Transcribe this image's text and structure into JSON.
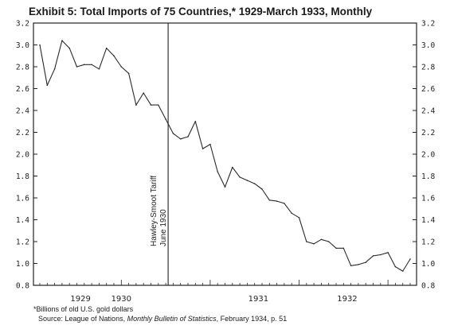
{
  "chart_data": {
    "type": "line",
    "title": "Exhibit 5: Total Imports of 75 Countries,* 1929-March 1933, Monthly",
    "xlabel": "",
    "ylabel": "",
    "x_tick_labels": [
      "1929",
      "1930",
      "1931",
      "1932"
    ],
    "y_ticks": [
      "0.8",
      "1.0",
      "1.2",
      "1.4",
      "1.6",
      "1.8",
      "2.0",
      "2.2",
      "2.4",
      "2.6",
      "2.8",
      "3.0",
      "3.2"
    ],
    "ylim": [
      0.8,
      3.2
    ],
    "grid": false,
    "x": [
      "1929-01",
      "1929-02",
      "1929-03",
      "1929-04",
      "1929-05",
      "1929-06",
      "1929-07",
      "1929-08",
      "1929-09",
      "1929-10",
      "1929-11",
      "1929-12",
      "1930-01",
      "1930-02",
      "1930-03",
      "1930-04",
      "1930-05",
      "1930-06",
      "1930-07",
      "1930-08",
      "1930-09",
      "1930-10",
      "1930-11",
      "1930-12",
      "1931-01",
      "1931-02",
      "1931-03",
      "1931-04",
      "1931-05",
      "1931-06",
      "1931-07",
      "1931-08",
      "1931-09",
      "1931-10",
      "1931-11",
      "1931-12",
      "1932-01",
      "1932-02",
      "1932-03",
      "1932-04",
      "1932-05",
      "1932-06",
      "1932-07",
      "1932-08",
      "1932-09",
      "1932-10",
      "1932-11",
      "1932-12",
      "1933-01",
      "1933-02",
      "1933-03"
    ],
    "series": [
      {
        "values": [
          3.0,
          2.63,
          2.78,
          3.04,
          2.97,
          2.8,
          2.82,
          2.82,
          2.78,
          2.97,
          2.9,
          2.8,
          2.74,
          2.45,
          2.56,
          2.45,
          2.45,
          2.32,
          2.19,
          2.14,
          2.16,
          2.3,
          2.05,
          2.09,
          1.84,
          1.7,
          1.88,
          1.79,
          1.76,
          1.73,
          1.68,
          1.58,
          1.57,
          1.55,
          1.46,
          1.42,
          1.2,
          1.18,
          1.22,
          1.2,
          1.14,
          1.14,
          0.98,
          0.99,
          1.01,
          1.07,
          1.08,
          1.1,
          0.97,
          0.93,
          1.04
        ]
      }
    ],
    "annotation": {
      "label": "Hawley-Smoot Tariff",
      "sublabel": "June 1930",
      "at": "1930-06"
    }
  },
  "footnote": "*Billions of old U.S. gold dollars",
  "source": {
    "prefix": "Source: League of Nations, ",
    "publication": "Monthly Bulletin of Statistics",
    "suffix": ", February 1934, p. 51"
  }
}
